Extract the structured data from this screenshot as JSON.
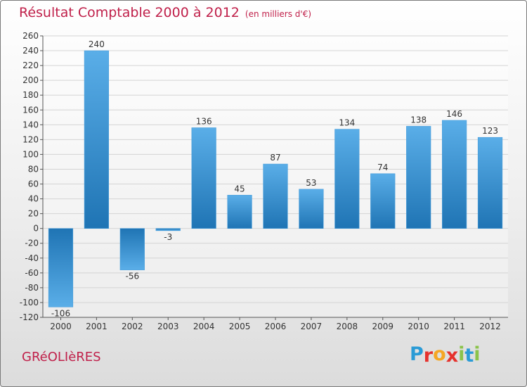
{
  "header": {
    "title": "Résultat Comptable 2000 à 2012",
    "subtitle": "(en milliers d'€)"
  },
  "footer": {
    "commune": "GRéOLIèRES",
    "logo_letters": [
      "P",
      "r",
      "o",
      "x",
      "i",
      "t",
      "i"
    ],
    "logo_colors": [
      "#2a9bd6",
      "#e5322d",
      "#f5a623",
      "#e5322d",
      "#8bc34a",
      "#2a9bd6",
      "#8bc34a"
    ]
  },
  "chart_data": {
    "type": "bar",
    "title": "Résultat Comptable 2000 à 2012",
    "ylabel": "en milliers d'€",
    "categories": [
      "2000",
      "2001",
      "2002",
      "2003",
      "2004",
      "2005",
      "2006",
      "2007",
      "2008",
      "2009",
      "2010",
      "2011",
      "2012"
    ],
    "values": [
      -106,
      240,
      -56,
      -3,
      136,
      45,
      87,
      53,
      134,
      74,
      138,
      146,
      123
    ],
    "value_labels": [
      "-106",
      "240",
      "-56",
      "-3",
      "136",
      "45",
      "87",
      "53",
      "134",
      "74",
      "138",
      "146",
      "123"
    ],
    "ylim": [
      -120,
      260
    ],
    "yticks": [
      -120,
      -100,
      -80,
      -60,
      -40,
      -20,
      0,
      20,
      40,
      60,
      80,
      100,
      120,
      140,
      160,
      180,
      200,
      220,
      240,
      260
    ],
    "grid": true,
    "colors": {
      "bar_light": "#5aaee8",
      "bar_dark": "#1f74b4",
      "grid": "#d4d4d4",
      "axis": "#555555",
      "text": "#333333"
    }
  }
}
